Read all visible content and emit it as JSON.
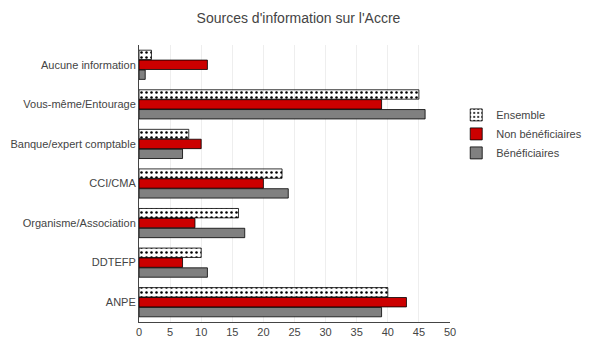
{
  "chart_data": {
    "type": "bar",
    "orientation": "horizontal",
    "title": "Sources d'information sur l'Accre",
    "categories": [
      "ANPE",
      "DDTEFP",
      "Organisme/Association",
      "CCI/CMA",
      "Banque/expert comptable",
      "Vous-même/Entourage",
      "Aucune information"
    ],
    "series": [
      {
        "name": "Ensemble",
        "color": "#ffffff",
        "values": [
          40,
          10,
          16,
          23,
          8,
          45,
          2
        ]
      },
      {
        "name": "Non bénéficiaires",
        "color": "#cc0000",
        "values": [
          43,
          7,
          9,
          20,
          10,
          39,
          11
        ]
      },
      {
        "name": "Bénéficiaires",
        "color": "#808080",
        "values": [
          39,
          11,
          17,
          24,
          7,
          46,
          1
        ]
      }
    ],
    "xlim": [
      0,
      50
    ],
    "xticks": [
      0,
      5,
      10,
      15,
      20,
      25,
      30,
      35,
      40,
      45,
      50
    ],
    "grid": true,
    "legend": "right"
  }
}
